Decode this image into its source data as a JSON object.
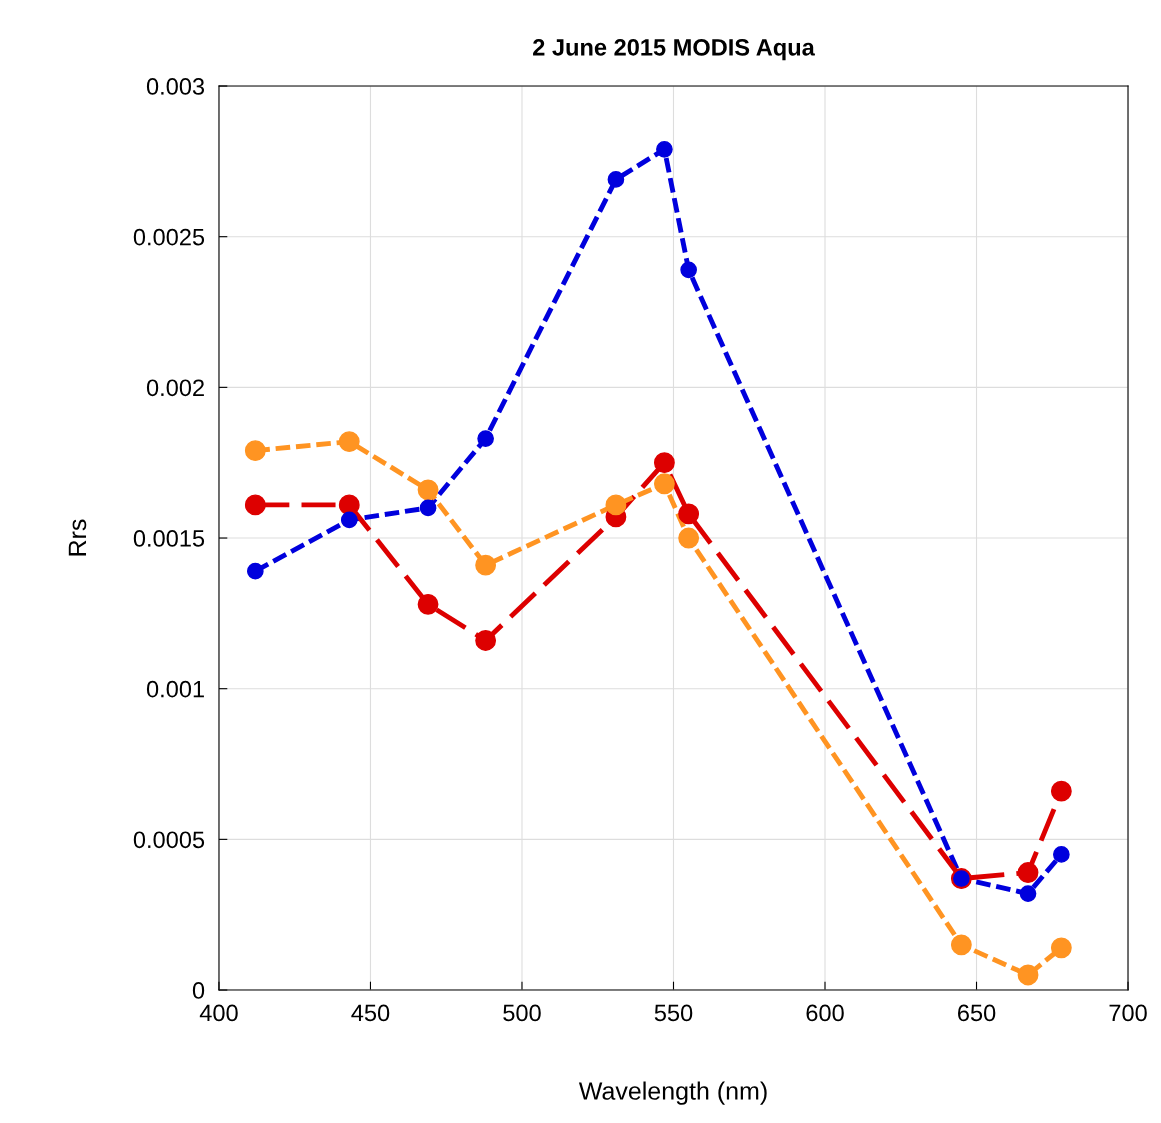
{
  "chart_data": {
    "type": "line",
    "title": "2 June 2015 MODIS Aqua",
    "xlabel": "Wavelength (nm)",
    "ylabel": "Rrs",
    "x": [
      412,
      443,
      469,
      488,
      531,
      547,
      555,
      645,
      667,
      678
    ],
    "series": [
      {
        "color": "#0000dd",
        "values": [
          0.00139,
          0.00156,
          0.0016,
          0.00183,
          0.00269,
          0.00279,
          0.00239,
          0.00037,
          0.00032,
          0.00045
        ]
      },
      {
        "color": "#dd0000",
        "values": [
          0.00161,
          0.00161,
          0.00128,
          0.00116,
          0.00157,
          0.00175,
          0.00158,
          0.00037,
          0.00039,
          0.00066
        ]
      },
      {
        "color": "#ff9422",
        "values": [
          0.00179,
          0.00182,
          0.00166,
          0.00141,
          0.00161,
          0.00168,
          0.0015,
          0.00015,
          5e-05,
          0.00014
        ]
      }
    ],
    "xlim": [
      400,
      700
    ],
    "xticks": [
      400,
      450,
      500,
      550,
      600,
      650,
      700
    ],
    "ylim": [
      0,
      0.003
    ],
    "yticks": [
      0,
      0.0005,
      0.001,
      0.0015,
      0.002,
      0.0025,
      0.003
    ],
    "grid": true,
    "marker": "circle",
    "line_style": "dashed"
  }
}
